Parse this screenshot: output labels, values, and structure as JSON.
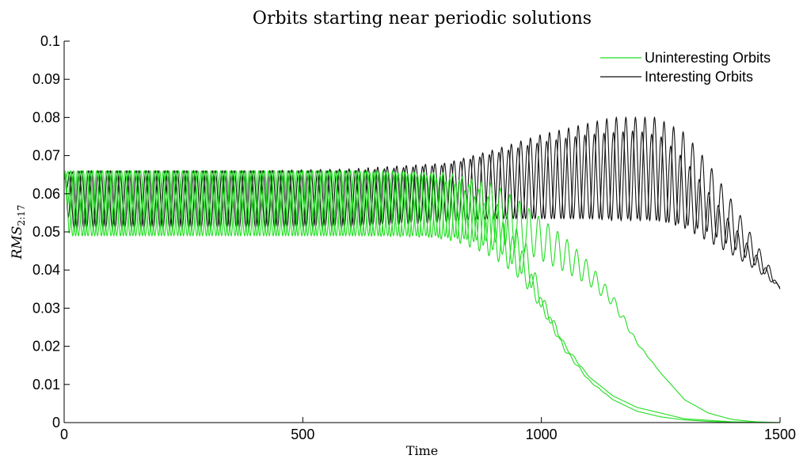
{
  "chart_data": {
    "type": "line",
    "title": "Orbits starting near periodic solutions",
    "xlabel": "Time",
    "ylabel": "RMS",
    "ylabel_sub": "2:17",
    "xlim": [
      0,
      1500
    ],
    "ylim": [
      0,
      0.1
    ],
    "xticks": [
      0,
      500,
      1000,
      1500
    ],
    "yticks": [
      0,
      0.01,
      0.02,
      0.03,
      0.04,
      0.05,
      0.06,
      0.07,
      0.08,
      0.09,
      0.1
    ],
    "ytick_labels": [
      "0",
      "0.01",
      "0.02",
      "0.03",
      "0.04",
      "0.05",
      "0.06",
      "0.07",
      "0.08",
      "0.09",
      "0.1"
    ],
    "grid": false,
    "legend_position": "top-right",
    "legend": [
      "Uninteresting Orbits",
      "Interesting Orbits"
    ],
    "period": 20,
    "series": [
      {
        "name": "Uninteresting Orbits",
        "color": "#22dd22",
        "curves": [
          {
            "phase": 0,
            "start": 0.066,
            "x": [
              0,
              50,
              300,
              600,
              750,
              820,
              880,
              920,
              960,
              1000,
              1050,
              1100,
              1150,
              1200,
              1250,
              1300,
              1350,
              1400,
              1450,
              1500
            ],
            "center": [
              0.0575,
              0.0575,
              0.0575,
              0.0575,
              0.057,
              0.055,
              0.051,
              0.047,
              0.041,
              0.031,
              0.019,
              0.011,
              0.006,
              0.003,
              0.0015,
              0.0007,
              0.0003,
              0.0001,
              0.0,
              0.0
            ],
            "amp": [
              0.0085,
              0.0085,
              0.0085,
              0.0085,
              0.008,
              0.0075,
              0.0065,
              0.0055,
              0.004,
              0.0015,
              0.0005,
              0.0002,
              0.0,
              0.0,
              0.0,
              0.0,
              0.0,
              0.0,
              0.0,
              0.0
            ]
          },
          {
            "phase": 0.3,
            "start": 0.065,
            "x": [
              0,
              50,
              300,
              600,
              800,
              900,
              950,
              1000,
              1050,
              1100,
              1150,
              1200,
              1250,
              1300,
              1350,
              1400,
              1450,
              1500
            ],
            "center": [
              0.0575,
              0.0575,
              0.0575,
              0.0575,
              0.057,
              0.055,
              0.052,
              0.048,
              0.044,
              0.039,
              0.032,
              0.021,
              0.013,
              0.006,
              0.0025,
              0.0008,
              0.0002,
              0.0
            ],
            "amp": [
              0.0085,
              0.0085,
              0.0085,
              0.0085,
              0.0085,
              0.0075,
              0.0065,
              0.0055,
              0.0045,
              0.003,
              0.0015,
              0.0003,
              0.0,
              0.0,
              0.0,
              0.0,
              0.0,
              0.0
            ]
          },
          {
            "phase": 0.6,
            "start": 0.0655,
            "x": [
              0,
              50,
              300,
              700,
              780,
              830,
              870,
              920,
              970,
              1000,
              1050,
              1100,
              1150,
              1200,
              1300,
              1400,
              1500
            ],
            "center": [
              0.0575,
              0.0575,
              0.0575,
              0.0575,
              0.057,
              0.056,
              0.054,
              0.05,
              0.042,
              0.032,
              0.02,
              0.012,
              0.007,
              0.004,
              0.001,
              0.0002,
              0.0
            ],
            "amp": [
              0.0085,
              0.0085,
              0.0085,
              0.0085,
              0.008,
              0.0075,
              0.007,
              0.006,
              0.0045,
              0.002,
              0.0005,
              0.0,
              0.0,
              0.0,
              0.0,
              0.0,
              0.0
            ]
          }
        ]
      },
      {
        "name": "Interesting Orbits",
        "color": "#111111",
        "curves": [
          {
            "phase": 0.15,
            "start": 0.0645,
            "x": [
              0,
              40,
              200,
              400,
              600,
              800,
              900,
              1000,
              1100,
              1150,
              1200,
              1240,
              1300,
              1350,
              1400,
              1450,
              1480,
              1500
            ],
            "center": [
              0.058,
              0.0585,
              0.0585,
              0.0585,
              0.059,
              0.0605,
              0.0625,
              0.0645,
              0.066,
              0.0665,
              0.0665,
              0.0665,
              0.064,
              0.059,
              0.052,
              0.044,
              0.039,
              0.035
            ],
            "amp": [
              0.0075,
              0.0075,
              0.0075,
              0.0075,
              0.0075,
              0.0075,
              0.009,
              0.011,
              0.0125,
              0.0135,
              0.0135,
              0.0135,
              0.012,
              0.009,
              0.006,
              0.003,
              0.0015,
              0.0
            ]
          },
          {
            "phase": 0.45,
            "start": 0.065,
            "x": [
              0,
              40,
              200,
              400,
              600,
              800,
              900,
              1000,
              1100,
              1200,
              1250,
              1300,
              1350,
              1400,
              1450,
              1480,
              1500
            ],
            "center": [
              0.058,
              0.0585,
              0.0585,
              0.0585,
              0.0585,
              0.06,
              0.062,
              0.0635,
              0.0645,
              0.065,
              0.064,
              0.06,
              0.054,
              0.048,
              0.042,
              0.038,
              0.0355
            ],
            "amp": [
              0.0075,
              0.0075,
              0.0075,
              0.0075,
              0.0075,
              0.0075,
              0.0085,
              0.01,
              0.011,
              0.0115,
              0.011,
              0.009,
              0.0065,
              0.004,
              0.002,
              0.001,
              0.0
            ]
          }
        ]
      }
    ]
  }
}
